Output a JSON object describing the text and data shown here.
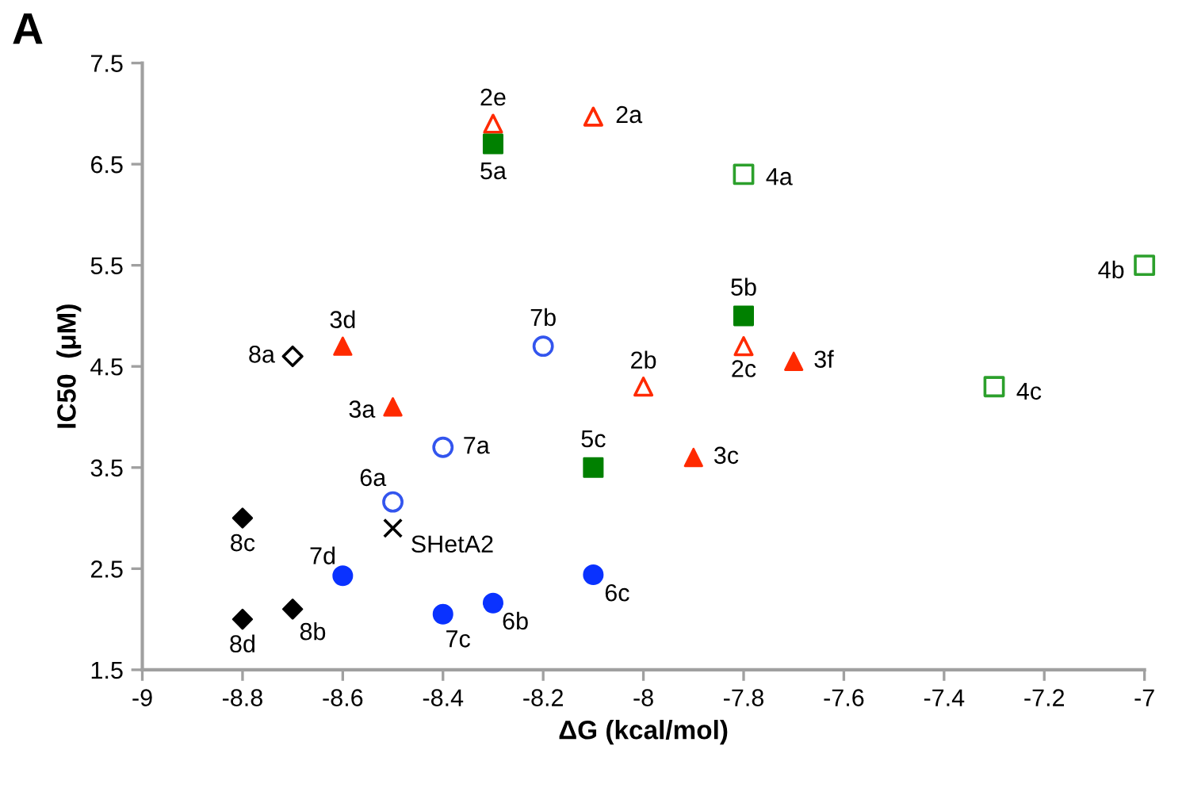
{
  "chart_data": {
    "type": "scatter",
    "title": "A",
    "xlabel": "ΔG (kcal/mol)",
    "ylabel": "IC50  (μM)",
    "xlim": [
      -9,
      -7
    ],
    "xticks": [
      -9,
      -8.8,
      -8.6,
      -8.4,
      -8.2,
      -8,
      -7.8,
      -7.6,
      -7.4,
      -7.2,
      -7
    ],
    "ylim": [
      1.5,
      7.5
    ],
    "yticks": [
      1.5,
      2.5,
      3.5,
      4.5,
      5.5,
      6.5,
      7.5
    ],
    "grid": false,
    "series": [
      {
        "color": "#ff2a00",
        "marker": "triangle-open",
        "x": [
          -8.3,
          -8.1,
          -8.0,
          -7.8
        ],
        "values": [
          6.9,
          6.97,
          4.3,
          4.7
        ]
      },
      {
        "color": "#ff2a00",
        "marker": "triangle",
        "x": [
          -8.5,
          -7.9,
          -8.6,
          -7.7
        ],
        "values": [
          4.1,
          3.6,
          4.7,
          4.55
        ]
      },
      {
        "color": "#2ca02c",
        "marker": "square-open",
        "x": [
          -7.8,
          -7.0,
          -7.3
        ],
        "values": [
          6.4,
          5.5,
          4.3
        ]
      },
      {
        "color": "#008000",
        "marker": "square",
        "x": [
          -8.3,
          -7.8,
          -8.1
        ],
        "values": [
          6.7,
          5.0,
          3.5
        ]
      },
      {
        "color": "#3355ee",
        "marker": "circle-open",
        "x": [
          -8.5,
          -8.4,
          -8.2
        ],
        "values": [
          3.16,
          3.7,
          4.7
        ]
      },
      {
        "color": "#0a32ff",
        "marker": "circle",
        "x": [
          -8.3,
          -8.1,
          -8.4,
          -8.6
        ],
        "values": [
          2.16,
          2.44,
          2.05,
          2.43
        ]
      },
      {
        "color": "#000000",
        "marker": "diamond-open",
        "x": [
          -8.7
        ],
        "values": [
          4.6
        ]
      },
      {
        "color": "#000000",
        "marker": "diamond",
        "x": [
          -8.7,
          -8.8,
          -8.8
        ],
        "values": [
          2.1,
          3.0,
          2.0
        ]
      },
      {
        "color": "#000000",
        "marker": "cross",
        "x": [
          -8.5
        ],
        "values": [
          2.9
        ]
      }
    ],
    "annotations": [
      {
        "text": "2e",
        "x": -8.3,
        "y": 6.9
      },
      {
        "text": "2a",
        "x": -8.1,
        "y": 6.97
      },
      {
        "text": "2b",
        "x": -8.0,
        "y": 4.3
      },
      {
        "text": "2c",
        "x": -7.8,
        "y": 4.7
      },
      {
        "text": "3a",
        "x": -8.5,
        "y": 4.1
      },
      {
        "text": "3c",
        "x": -7.9,
        "y": 3.6
      },
      {
        "text": "3d",
        "x": -8.6,
        "y": 4.7
      },
      {
        "text": "3f",
        "x": -7.7,
        "y": 4.55
      },
      {
        "text": "4a",
        "x": -7.8,
        "y": 6.4
      },
      {
        "text": "4b",
        "x": -7.0,
        "y": 5.5
      },
      {
        "text": "4c",
        "x": -7.3,
        "y": 4.3
      },
      {
        "text": "5a",
        "x": -8.3,
        "y": 6.7
      },
      {
        "text": "5b",
        "x": -7.8,
        "y": 5.0
      },
      {
        "text": "5c",
        "x": -8.1,
        "y": 3.5
      },
      {
        "text": "6a",
        "x": -8.5,
        "y": 3.16
      },
      {
        "text": "6b",
        "x": -8.3,
        "y": 2.16
      },
      {
        "text": "6c",
        "x": -8.1,
        "y": 2.44
      },
      {
        "text": "7a",
        "x": -8.4,
        "y": 3.7
      },
      {
        "text": "7b",
        "x": -8.2,
        "y": 4.7
      },
      {
        "text": "7c",
        "x": -8.4,
        "y": 2.05
      },
      {
        "text": "7d",
        "x": -8.6,
        "y": 2.43
      },
      {
        "text": "8a",
        "x": -8.7,
        "y": 4.6
      },
      {
        "text": "8b",
        "x": -8.7,
        "y": 2.1
      },
      {
        "text": "8c",
        "x": -8.8,
        "y": 3.0
      },
      {
        "text": "8d",
        "x": -8.8,
        "y": 2.0
      },
      {
        "text": "SHetA2",
        "x": -8.5,
        "y": 2.9
      }
    ]
  }
}
